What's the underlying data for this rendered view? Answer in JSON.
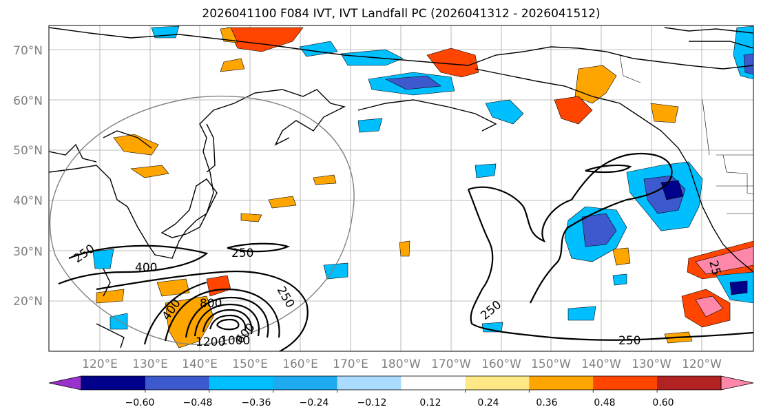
{
  "title": "2026041100 F084 IVT, IVT Landfall PC (2026041312 - 2026041512)",
  "lat_labels": [
    "70°N",
    "60°N",
    "50°N",
    "40°N",
    "30°N",
    "20°N"
  ],
  "lon_labels": [
    "120°E",
    "130°E",
    "140°E",
    "150°E",
    "160°E",
    "170°E",
    "180°W",
    "170°W",
    "160°W",
    "150°W",
    "140°W",
    "130°W",
    "120°W"
  ],
  "contour_labels": [
    "250",
    "250",
    "400",
    "250",
    "250",
    "250",
    "400",
    "800",
    "1200",
    "1000",
    "600",
    "25"
  ],
  "colorbar": {
    "colors": [
      "#9932cc",
      "#00008b",
      "#3c5acd",
      "#00bfff",
      "#1eaaf0",
      "#aadcff",
      "#ffffff",
      "#ffe987",
      "#ffa500",
      "#ff4500",
      "#b22222",
      "#ff88aa"
    ],
    "tick_labels": [
      "−0.60",
      "−0.48",
      "−0.36",
      "−0.24",
      "−0.12",
      "0.12",
      "0.24",
      "0.36",
      "0.48",
      "0.60"
    ]
  }
}
